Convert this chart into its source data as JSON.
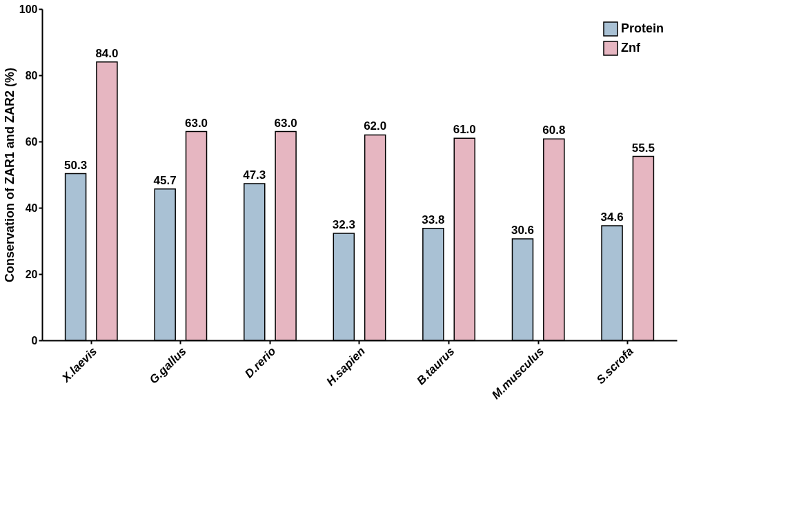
{
  "chart_data": {
    "type": "bar",
    "ylabel": "Conservation of ZAR1 and ZAR2 (%)",
    "categories": [
      "X.laevis",
      "G.gallus",
      "D.rerio",
      "H.sapien",
      "B.taurus",
      "M.musculus",
      "S.scrofa"
    ],
    "series": [
      {
        "name": "Protein",
        "color": "#a9c1d4",
        "values": [
          50.3,
          45.7,
          47.3,
          32.3,
          33.8,
          30.6,
          34.6
        ]
      },
      {
        "name": "Znf",
        "color": "#e6b6c1",
        "values": [
          84.0,
          63.0,
          63.0,
          62.0,
          61.0,
          60.8,
          55.5
        ]
      }
    ],
    "value_labels": [
      [
        "50.3",
        "45.7",
        "47.3",
        "32.3",
        "33.8",
        "30.6",
        "34.6"
      ],
      [
        "84.0",
        "63.0",
        "63.0",
        "62.0",
        "61.0",
        "60.8",
        "55.5"
      ]
    ],
    "ylim": [
      0,
      100
    ],
    "yticks": [
      0,
      20,
      40,
      60,
      80,
      100
    ],
    "grid": false,
    "legend": "top right"
  }
}
